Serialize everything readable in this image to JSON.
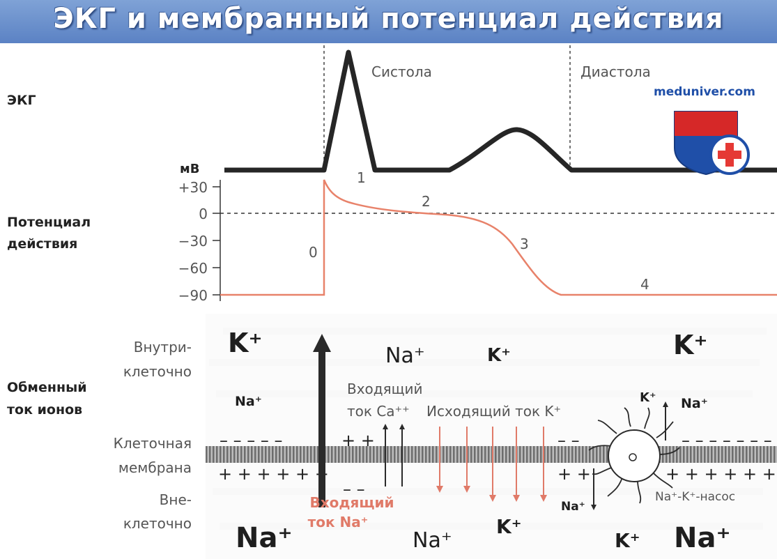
{
  "title": "ЭКГ и мембранный потенциал действия",
  "sections": {
    "ecg": "ЭКГ",
    "ap_line1": "Потенциал",
    "ap_line2": "действия",
    "ion_line1": "Обменный",
    "ion_line2": "ток ионов"
  },
  "phases": {
    "systole": "Систола",
    "diastole": "Диастола"
  },
  "axis": {
    "unit": "мВ",
    "ticks": [
      "+30",
      "0",
      "−30",
      "−60",
      "−90"
    ]
  },
  "ap_phases": [
    "0",
    "1",
    "2",
    "3",
    "4"
  ],
  "watermark": {
    "text": "meduniver.com",
    "colors": {
      "shield_top": "#d62828",
      "shield_bottom": "#1f4fa8",
      "cross": "#e53935"
    }
  },
  "ion_side_labels": {
    "inside_1": "Внутри-",
    "inside_2": "клеточно",
    "membrane_1": "Клеточная",
    "membrane_2": "мембрана",
    "outside_1": "Вне-",
    "outside_2": "клеточно"
  },
  "ions": {
    "k_in_left": "K⁺",
    "na_in_left": "Na⁺",
    "na_in_mid": "Na⁺",
    "k_in_mid": "K⁺",
    "k_in_right": "K⁺",
    "k_pump_in": "K⁺",
    "na_pump_in": "Na⁺",
    "na_out_left": "Na⁺",
    "na_out_mid": "Na⁺",
    "k_out_mid": "K⁺",
    "na_pump_out": "Na⁺",
    "k_out_right": "K⁺",
    "na_out_right": "Na⁺"
  },
  "currents": {
    "ca_1": "Входящий",
    "ca_2": "ток Ca⁺⁺",
    "k_out": "Исходящий ток K⁺",
    "na_in_1": "Входящий",
    "na_in_2": "ток Na⁺",
    "pump": "Na⁺-K⁺-насос"
  },
  "charges": {
    "neg_left": "– – – – –",
    "pos_left": "+ + + + + +",
    "pos_mid": "+ +",
    "neg_mid": "– –",
    "neg_k": "– –",
    "pos_k": "+ +",
    "neg_right": "– – – – – – –",
    "pos_right": "+ + + + + +"
  },
  "colors": {
    "banner": "#6a8fcd",
    "ecg_line": "#262626",
    "ap_line": "#e8826a",
    "arrow_dark": "#2a2a2a",
    "arrow_red": "#e07a68",
    "na_current_text": "#e07a68",
    "membrane": "#6d6d6d"
  }
}
